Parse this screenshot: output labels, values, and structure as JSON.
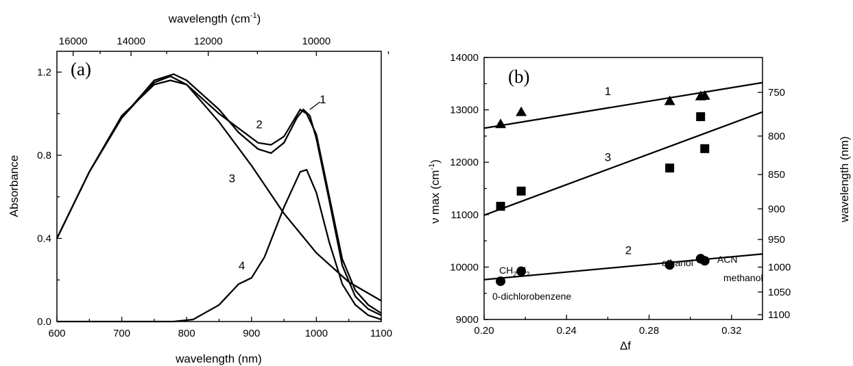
{
  "chart_data": [
    {
      "type": "line",
      "panel_label": "(a)",
      "xlabel": "wavelength (nm)",
      "ylabel": "Absorbance",
      "top_xlabel": {
        "main": "wavelength (cm",
        "sup": "-1",
        "close": ")"
      },
      "xlim": [
        600,
        1100
      ],
      "ylim": [
        0,
        1.3
      ],
      "x_ticks": [
        "600",
        "700",
        "800",
        "900",
        "1000",
        "1100"
      ],
      "y_ticks": [
        "0.0",
        "0.4",
        "0.8",
        "1.2"
      ],
      "top_ticks": [
        "16000",
        "14000",
        "12000",
        "10000"
      ],
      "series": [
        {
          "name": "1",
          "points": [
            [
              600,
              0.4
            ],
            [
              650,
              0.72
            ],
            [
              700,
              0.98
            ],
            [
              750,
              1.15
            ],
            [
              775,
              1.18
            ],
            [
              800,
              1.14
            ],
            [
              850,
              1.0
            ],
            [
              880,
              0.93
            ],
            [
              910,
              0.86
            ],
            [
              930,
              0.85
            ],
            [
              950,
              0.89
            ],
            [
              975,
              1.02
            ],
            [
              985,
              1.0
            ],
            [
              1000,
              0.9
            ],
            [
              1020,
              0.6
            ],
            [
              1040,
              0.3
            ],
            [
              1060,
              0.15
            ],
            [
              1080,
              0.08
            ],
            [
              1100,
              0.04
            ]
          ]
        },
        {
          "name": "2",
          "points": [
            [
              600,
              0.4
            ],
            [
              650,
              0.72
            ],
            [
              700,
              0.98
            ],
            [
              750,
              1.16
            ],
            [
              780,
              1.19
            ],
            [
              800,
              1.16
            ],
            [
              850,
              1.02
            ],
            [
              880,
              0.91
            ],
            [
              910,
              0.83
            ],
            [
              930,
              0.81
            ],
            [
              950,
              0.86
            ],
            [
              970,
              0.98
            ],
            [
              980,
              1.02
            ],
            [
              990,
              0.99
            ],
            [
              1000,
              0.88
            ],
            [
              1020,
              0.58
            ],
            [
              1040,
              0.27
            ],
            [
              1060,
              0.12
            ],
            [
              1080,
              0.06
            ],
            [
              1100,
              0.03
            ]
          ]
        },
        {
          "name": "3",
          "points": [
            [
              600,
              0.4
            ],
            [
              650,
              0.72
            ],
            [
              700,
              0.99
            ],
            [
              750,
              1.14
            ],
            [
              775,
              1.16
            ],
            [
              800,
              1.14
            ],
            [
              850,
              0.96
            ],
            [
              900,
              0.75
            ],
            [
              950,
              0.52
            ],
            [
              1000,
              0.33
            ],
            [
              1050,
              0.19
            ],
            [
              1100,
              0.1
            ]
          ]
        },
        {
          "name": "4",
          "points": [
            [
              600,
              0.0
            ],
            [
              780,
              0.0
            ],
            [
              810,
              0.01
            ],
            [
              850,
              0.08
            ],
            [
              880,
              0.18
            ],
            [
              900,
              0.21
            ],
            [
              920,
              0.31
            ],
            [
              950,
              0.55
            ],
            [
              975,
              0.72
            ],
            [
              985,
              0.73
            ],
            [
              1000,
              0.62
            ],
            [
              1020,
              0.38
            ],
            [
              1040,
              0.18
            ],
            [
              1060,
              0.08
            ],
            [
              1080,
              0.03
            ],
            [
              1100,
              0.01
            ]
          ]
        }
      ]
    },
    {
      "type": "scatter",
      "panel_label": "(b)",
      "xlabel": "Δf",
      "ylabel": {
        "main": "ν max (cm",
        "sup": "-1",
        "close": ")"
      },
      "right_ylabel": "wavelength (nm)",
      "xlim": [
        0.2,
        0.335
      ],
      "ylim": [
        9000,
        14000
      ],
      "x_ticks": [
        "0.20",
        "0.24",
        "0.28",
        "0.32"
      ],
      "y_ticks": [
        "9000",
        "10000",
        "11000",
        "12000",
        "13000",
        "14000"
      ],
      "right_ticks": [
        "750",
        "800",
        "850",
        "900",
        "950",
        "1000",
        "1050",
        "1100"
      ],
      "series": [
        {
          "name": "1",
          "marker": "triangle",
          "points": [
            [
              0.208,
              12730
            ],
            [
              0.218,
              12960
            ],
            [
              0.29,
              13170
            ],
            [
              0.305,
              13260
            ],
            [
              0.307,
              13270
            ]
          ],
          "fit": [
            [
              0.2,
              12650
            ],
            [
              0.335,
              13520
            ]
          ]
        },
        {
          "name": "3",
          "marker": "square",
          "points": [
            [
              0.208,
              11160
            ],
            [
              0.218,
              11450
            ],
            [
              0.29,
              11890
            ],
            [
              0.305,
              12870
            ],
            [
              0.307,
              12260
            ]
          ],
          "fit": [
            [
              0.2,
              10990
            ],
            [
              0.335,
              12960
            ]
          ]
        },
        {
          "name": "2",
          "marker": "circle",
          "points": [
            [
              0.208,
              9730
            ],
            [
              0.218,
              9920
            ],
            [
              0.29,
              10040
            ],
            [
              0.305,
              10160
            ],
            [
              0.307,
              10120
            ]
          ],
          "fit": [
            [
              0.2,
              9760
            ],
            [
              0.335,
              10250
            ]
          ]
        }
      ],
      "annotations": [
        "0-dichlorobenzene",
        "ethanol",
        "ACN",
        "methanol"
      ],
      "solvent_ch2cl2": {
        "c": "CH",
        "s1": "2",
        "cl": "Cl",
        "s2": "2"
      }
    }
  ]
}
